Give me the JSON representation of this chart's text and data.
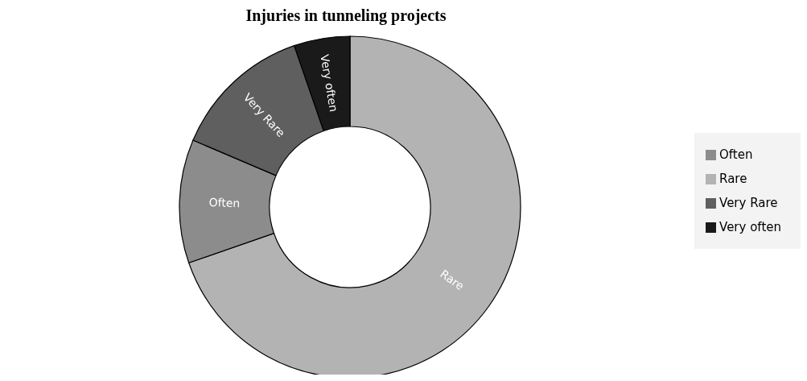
{
  "chart_data": {
    "type": "donut",
    "title": "Injuries in tunneling projects",
    "categories": [
      "Rare",
      "Often",
      "Very Rare",
      "Very often"
    ],
    "values": [
      69.7,
      11.7,
      13.3,
      5.3
    ],
    "colors": [
      "#b3b3b3",
      "#8c8c8c",
      "#5f5f5f",
      "#1a1a1a"
    ],
    "legend": "right"
  }
}
